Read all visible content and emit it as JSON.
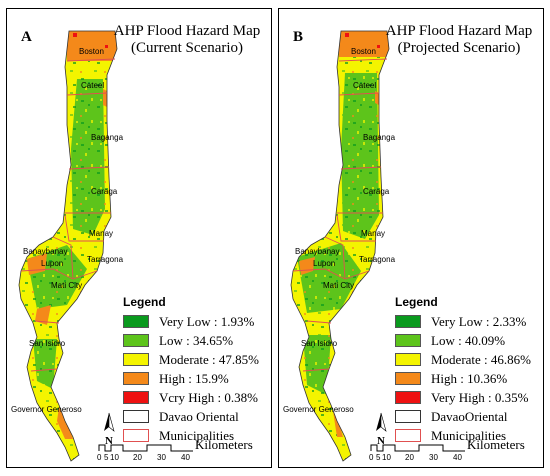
{
  "colors": {
    "very_low": "#0a9a1e",
    "low": "#5dc41b",
    "moderate": "#f4f400",
    "high": "#f4891a",
    "very_high": "#ee1111",
    "boundary": "#e05050"
  },
  "panels": [
    {
      "letter": "A",
      "title_line1": "AHP Flood Hazard Map",
      "title_line2": "(Current Scenario)",
      "legend_title": "Legend",
      "legend": [
        {
          "label": "Very Low : 1.93%",
          "color_key": "very_low",
          "value": 1.93
        },
        {
          "label": "Low : 34.65%",
          "color_key": "low",
          "value": 34.65
        },
        {
          "label": "Moderate : 47.85%",
          "color_key": "moderate",
          "value": 47.85
        },
        {
          "label": "High : 15.9%",
          "color_key": "high",
          "value": 15.9
        },
        {
          "label": "Vcry High : 0.38%",
          "color_key": "very_high",
          "value": 0.38
        },
        {
          "label": "Davao Oriental",
          "color_key": "none"
        },
        {
          "label": "Municipalities",
          "color_key": "boundary_line"
        }
      ]
    },
    {
      "letter": "B",
      "title_line1": "AHP Flood Hazard Map",
      "title_line2": "(Projected Scenario)",
      "legend_title": "Legend",
      "legend": [
        {
          "label": "Very Low : 2.33%",
          "color_key": "very_low",
          "value": 2.33
        },
        {
          "label": "Low : 40.09%",
          "color_key": "low",
          "value": 40.09
        },
        {
          "label": "Moderate : 46.86%",
          "color_key": "moderate",
          "value": 46.86
        },
        {
          "label": "High : 10.36%",
          "color_key": "high",
          "value": 10.36
        },
        {
          "label": "Very High : 0.35%",
          "color_key": "very_high",
          "value": 0.35
        },
        {
          "label": "DavaoOriental",
          "color_key": "none"
        },
        {
          "label": "Municipalities",
          "color_key": "boundary_line"
        }
      ]
    }
  ],
  "municipalities": {
    "boston": "Boston",
    "cateel": "Cateel",
    "baganga": "Baganga",
    "caraga": "Caraga",
    "manay": "Manay",
    "banaybanay": "Banaybanay",
    "lupon": "Lupon",
    "tarragona": "Tarragona",
    "mati": "Mati City",
    "san_isidro": "San Isidro",
    "governor_generoso": "Governor Generoso"
  },
  "scale": {
    "north": "N",
    "unit": "Kilometers",
    "ticks": [
      "0",
      "5",
      "10",
      "20",
      "30",
      "40"
    ]
  }
}
